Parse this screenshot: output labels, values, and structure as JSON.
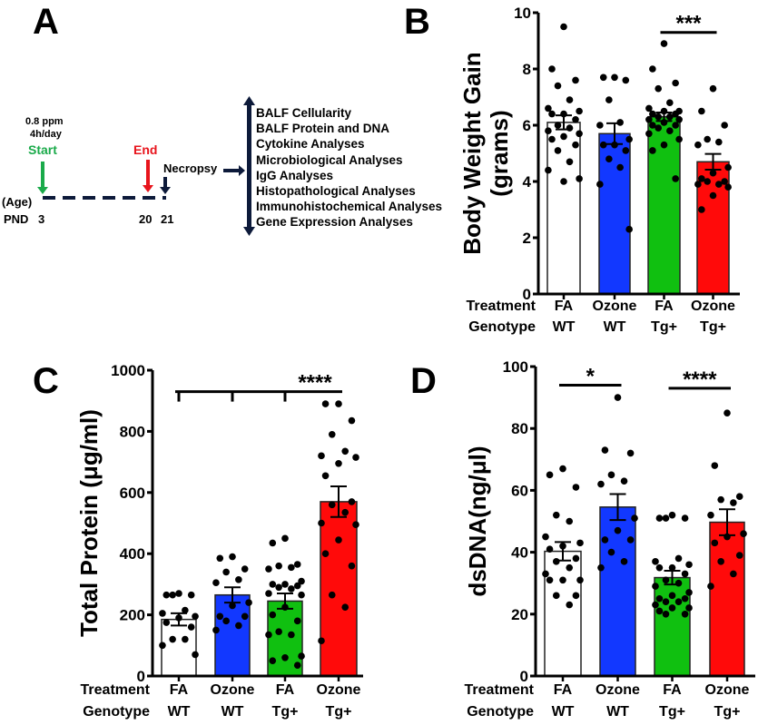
{
  "panel_letters": [
    "A",
    "B",
    "C",
    "D"
  ],
  "panel_a": {
    "dose": "0.8 ppm",
    "duration": "4h/day",
    "start_label": "Start",
    "end_label": "End",
    "necropsy_label": "Necropsy",
    "age_label": "(Age)",
    "pnd_label": "PND",
    "day_start": "3",
    "day_end": "20",
    "day_necropsy": "21",
    "analyses": [
      "BALF Cellularity",
      "BALF Protein and DNA",
      "Cytokine Analyses",
      "Microbiological Analyses",
      "IgG Analyses",
      "Histopathological Analyses",
      "Immunohistochemical Analyses",
      "Gene Expression Analyses"
    ],
    "colors": {
      "start": "#1aaa4a",
      "end": "#e8141c",
      "timeline": "#0d1a3a"
    }
  },
  "chart_data": [
    {
      "id": "B",
      "type": "bar",
      "ylabel_lines": [
        "Body Weight Gain",
        "(grams)"
      ],
      "ylim": [
        0,
        10
      ],
      "yticks": [
        "0",
        "2",
        "4",
        "6",
        "8",
        "10"
      ],
      "ytick_values": [
        0,
        2,
        4,
        6,
        8,
        10
      ],
      "row_labels": [
        "Treatment",
        "Genotype"
      ],
      "categories": [
        {
          "treatment": "FA",
          "genotype": "WT"
        },
        {
          "treatment": "Ozone",
          "genotype": "WT"
        },
        {
          "treatment": "FA",
          "genotype": "Tg+"
        },
        {
          "treatment": "Ozone",
          "genotype": "Tg+"
        }
      ],
      "colors": [
        "#ffffff",
        "#1238ff",
        "#10c010",
        "#ff0a0a"
      ],
      "means": [
        6.1,
        5.7,
        6.3,
        4.7
      ],
      "sem": [
        0.25,
        0.37,
        0.15,
        0.28
      ],
      "points": [
        [
          9.5,
          8.0,
          7.6,
          7.4,
          6.9,
          6.6,
          6.5,
          6.4,
          6.4,
          6.2,
          6.0,
          5.9,
          5.8,
          5.7,
          5.6,
          5.5,
          5.3,
          5.1,
          4.7,
          4.4,
          4.1,
          4.0
        ],
        [
          7.7,
          7.7,
          7.6,
          6.9,
          6.1,
          6.0,
          5.5,
          5.3,
          5.3,
          5.1,
          4.8,
          4.5,
          3.9,
          2.3
        ],
        [
          8.9,
          8.0,
          7.5,
          7.3,
          6.8,
          6.6,
          6.5,
          6.5,
          6.4,
          6.4,
          6.3,
          6.3,
          6.2,
          6.2,
          6.1,
          6.0,
          6.0,
          5.9,
          5.8,
          5.7,
          5.5,
          5.3,
          5.1,
          4.1
        ],
        [
          7.3,
          6.5,
          6.0,
          5.5,
          5.4,
          5.3,
          4.5,
          4.3,
          4.1,
          4.0,
          4.0,
          3.9,
          3.9,
          3.8,
          3.5,
          3.0
        ]
      ],
      "significance": [
        {
          "from": 2,
          "to": 3,
          "y": 9.3,
          "label": "***",
          "ticks": []
        }
      ]
    },
    {
      "id": "C",
      "type": "bar",
      "ylabel_lines": [
        "Total Protein (μg/ml)"
      ],
      "ylim": [
        0,
        1000
      ],
      "yticks": [
        "0",
        "200",
        "400",
        "600",
        "800",
        "1000"
      ],
      "ytick_values": [
        0,
        200,
        400,
        600,
        800,
        1000
      ],
      "row_labels": [
        "Treatment",
        "Genotype"
      ],
      "categories": [
        {
          "treatment": "FA",
          "genotype": "WT"
        },
        {
          "treatment": "Ozone",
          "genotype": "WT"
        },
        {
          "treatment": "FA",
          "genotype": "Tg+"
        },
        {
          "treatment": "Ozone",
          "genotype": "Tg+"
        }
      ],
      "colors": [
        "#ffffff",
        "#1238ff",
        "#10c010",
        "#ff0a0a"
      ],
      "means": [
        185,
        265,
        245,
        570
      ],
      "sem": [
        20,
        25,
        25,
        50
      ],
      "points": [
        [
          270,
          265,
          265,
          265,
          215,
          205,
          195,
          190,
          175,
          160,
          120,
          120,
          100,
          70
        ],
        [
          390,
          385,
          350,
          340,
          315,
          305,
          240,
          230,
          195,
          195,
          180,
          165,
          150
        ],
        [
          450,
          435,
          365,
          360,
          355,
          350,
          310,
          300,
          300,
          295,
          290,
          285,
          270,
          265,
          225,
          200,
          180,
          145,
          135,
          135,
          65,
          60,
          50,
          35
        ],
        [
          890,
          890,
          835,
          790,
          735,
          720,
          715,
          695,
          655,
          570,
          560,
          535,
          500,
          495,
          445,
          400,
          360,
          265,
          225,
          115
        ]
      ],
      "significance": [
        {
          "from": 0,
          "to": 3,
          "y": 930,
          "label": "****",
          "ticks": [
            0,
            1,
            2
          ]
        }
      ]
    },
    {
      "id": "D",
      "type": "bar",
      "ylabel_lines": [
        "dsDNA(ng/μl)"
      ],
      "ylim": [
        0,
        100
      ],
      "yticks": [
        "0",
        "20",
        "40",
        "60",
        "80",
        "100"
      ],
      "ytick_values": [
        0,
        20,
        40,
        60,
        80,
        100
      ],
      "row_labels": [
        "Treatment",
        "Genotype"
      ],
      "categories": [
        {
          "treatment": "FA",
          "genotype": "WT"
        },
        {
          "treatment": "Ozone",
          "genotype": "WT"
        },
        {
          "treatment": "FA",
          "genotype": "Tg+"
        },
        {
          "treatment": "Ozone",
          "genotype": "Tg+"
        }
      ],
      "colors": [
        "#ffffff",
        "#1238ff",
        "#10c010",
        "#ff0a0a"
      ],
      "means": [
        40.3,
        54.6,
        31.8,
        49.7
      ],
      "sem": [
        3.0,
        4.2,
        2.2,
        4.2
      ],
      "points": [
        [
          67,
          65,
          61,
          52,
          50,
          45,
          43,
          42,
          41,
          38,
          37,
          35,
          33,
          31,
          31,
          31,
          26,
          26,
          23
        ],
        [
          90,
          73,
          72,
          65,
          63,
          62,
          51,
          47,
          44,
          44,
          40,
          37,
          35
        ],
        [
          52,
          51,
          51,
          51,
          38,
          37,
          36,
          35,
          35,
          33,
          31,
          30,
          29,
          27,
          26,
          25,
          25,
          24,
          24,
          23,
          22,
          22,
          21,
          20,
          20
        ],
        [
          85,
          68,
          58,
          57,
          56,
          52,
          46,
          45,
          43,
          39,
          37,
          33,
          29
        ]
      ],
      "significance": [
        {
          "from": 0,
          "to": 1,
          "y": 94,
          "label": "*",
          "ticks": []
        },
        {
          "from": 2,
          "to": 3,
          "y": 93,
          "label": "****",
          "ticks": []
        }
      ]
    }
  ]
}
